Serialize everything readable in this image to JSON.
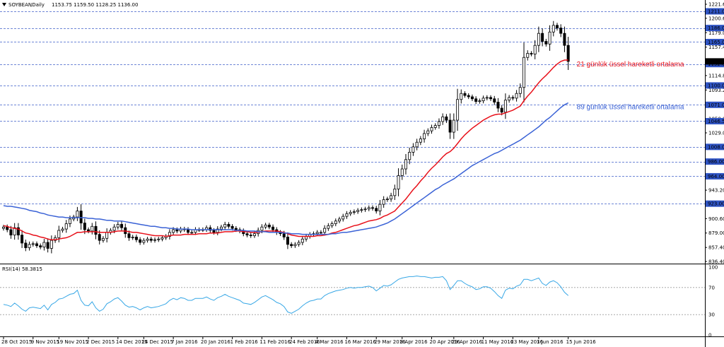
{
  "header": {
    "symbol": "SOYBEAN",
    "timeframe": ",Daily",
    "ohlc": "1153.75 1159.50 1128.25 1136.00",
    "indicator_label": "RSI(14) 58.3815"
  },
  "colors": {
    "candle": "#000000",
    "ema21": "#e8101a",
    "ema89": "#3a62d6",
    "rsi": "#37a7e6",
    "grid": "#3f5fc9",
    "highlight_bg": "#2f54c4",
    "price_marker_bg": "#000000"
  },
  "icons": {
    "collapse": "triangle-down-icon"
  },
  "chart_data": [
    {
      "type": "candlestick",
      "title": "SOYBEAN ,Daily",
      "grid": true,
      "ylim": [
        836.4,
        1221.6
      ],
      "y_ticks": [
        "1221.60",
        "1200.60",
        "1179.00",
        "1157.40",
        "1136.00",
        "1114.80",
        "1093.20",
        "1071.60",
        "1050.00",
        "1029.00",
        "1008.00",
        "986.00",
        "964.00",
        "943.20",
        "922.00",
        "900.60",
        "879.00",
        "857.40",
        "836.40"
      ],
      "horizontal_levels": [
        {
          "label": "1211.00",
          "value": 1211
        },
        {
          "label": "1186.00",
          "value": 1186
        },
        {
          "label": "1165.00",
          "value": 1165
        },
        {
          "label": "1132.00",
          "value": 1132
        },
        {
          "label": "1100.00",
          "value": 1100
        },
        {
          "label": "1071.00",
          "value": 1071
        },
        {
          "label": "1046.50",
          "value": 1046.5
        },
        {
          "label": "1008.00",
          "value": 1008
        },
        {
          "label": "986.00",
          "value": 986
        },
        {
          "label": "964.00",
          "value": 964
        },
        {
          "label": "923.00",
          "value": 923
        }
      ],
      "current_price": {
        "label": "1136.00",
        "value": 1136
      },
      "x_ticks": [
        "28 Oct 2015",
        "9 Nov 2015",
        "19 Nov 2015",
        "2 Dec 2015",
        "14 Dec 2015",
        "24 Dec 2015",
        "7 Jan 2016",
        "20 Jan 2016",
        "1 Feb 2016",
        "11 Feb 2016",
        "24 Feb 2016",
        "4 Mar 2016",
        "16 Mar 2016",
        "29 Mar 2016",
        "8 Apr 2016",
        "20 Apr 2016",
        "29 Apr 2016",
        "11 May 2016",
        "23 May 2016",
        "3 Jun 2016",
        "15 Jun 2016"
      ],
      "x_tick_bar_index": [
        0,
        8,
        15,
        23,
        31,
        38,
        46,
        54,
        62,
        70,
        78,
        85,
        93,
        101,
        108,
        116,
        122,
        130,
        138,
        145,
        153
      ],
      "close": [
        888,
        884,
        876,
        887,
        876,
        864,
        857,
        862,
        863,
        860,
        858,
        865,
        856,
        868,
        872,
        883,
        885,
        893,
        900,
        903,
        912,
        894,
        884,
        882,
        889,
        877,
        868,
        871,
        880,
        883,
        888,
        892,
        887,
        878,
        872,
        873,
        869,
        865,
        868,
        870,
        868,
        869,
        870,
        872,
        874,
        880,
        884,
        882,
        885,
        884,
        880,
        880,
        884,
        884,
        884,
        887,
        883,
        880,
        885,
        888,
        892,
        889,
        886,
        884,
        882,
        878,
        876,
        875,
        878,
        883,
        888,
        891,
        888,
        884,
        880,
        878,
        873,
        862,
        860,
        862,
        865,
        870,
        874,
        877,
        878,
        880,
        880,
        886,
        890,
        893,
        897,
        900,
        904,
        908,
        910,
        911,
        913,
        914,
        915,
        917,
        916,
        912,
        922,
        929,
        930,
        935,
        945,
        965,
        975,
        989,
        1000,
        1008,
        1015,
        1020,
        1028,
        1032,
        1037,
        1040,
        1046,
        1053,
        1048,
        1030,
        1048,
        1079,
        1088,
        1085,
        1083,
        1080,
        1076,
        1077,
        1081,
        1082,
        1080,
        1075,
        1066,
        1060,
        1078,
        1082,
        1081,
        1088,
        1097,
        1142,
        1148,
        1147,
        1160,
        1178,
        1166,
        1162,
        1180,
        1190,
        1186,
        1178,
        1160,
        1136
      ],
      "series": [
        {
          "name": "21 günlük üssel hareketli ortalama",
          "values": [
            890,
            889,
            887,
            886,
            885,
            882,
            879,
            878,
            876,
            875,
            873,
            872,
            870,
            869,
            869,
            870,
            871,
            872,
            874,
            877,
            880,
            880,
            881,
            881,
            881,
            881,
            880,
            880,
            880,
            880,
            881,
            882,
            882,
            882,
            881,
            880,
            880,
            879,
            878,
            877,
            876,
            875,
            875,
            875,
            874,
            875,
            876,
            876,
            876,
            877,
            877,
            877,
            877,
            878,
            878,
            878,
            879,
            879,
            879,
            880,
            881,
            881,
            881,
            882,
            882,
            881,
            881,
            880,
            880,
            880,
            881,
            882,
            882,
            882,
            882,
            881,
            880,
            878,
            876,
            875,
            874,
            874,
            874,
            874,
            874,
            875,
            875,
            876,
            877,
            879,
            880,
            882,
            884,
            886,
            888,
            890,
            891,
            893,
            895,
            897,
            898,
            899,
            901,
            904,
            906,
            909,
            912,
            918,
            924,
            930,
            937,
            944,
            950,
            957,
            963,
            970,
            976,
            981,
            987,
            993,
            998,
            1001,
            1006,
            1013,
            1020,
            1026,
            1031,
            1036,
            1040,
            1044,
            1048,
            1051,
            1054,
            1056,
            1057,
            1057,
            1059,
            1061,
            1063,
            1066,
            1069,
            1077,
            1084,
            1090,
            1097,
            1104,
            1110,
            1115,
            1121,
            1127,
            1132,
            1136,
            1138,
            1138
          ]
        },
        {
          "name": "89 günlük üssel hareketli ortalama",
          "values": [
            920,
            919,
            919,
            918,
            917,
            916,
            915,
            913,
            912,
            911,
            909,
            908,
            906,
            905,
            904,
            903,
            903,
            902,
            902,
            902,
            902,
            902,
            902,
            901,
            901,
            900,
            900,
            899,
            898,
            898,
            897,
            897,
            897,
            896,
            895,
            894,
            893,
            892,
            891,
            890,
            889,
            889,
            888,
            887,
            887,
            886,
            886,
            885,
            885,
            885,
            885,
            884,
            884,
            884,
            884,
            884,
            884,
            884,
            884,
            884,
            884,
            884,
            884,
            883,
            883,
            883,
            882,
            882,
            882,
            881,
            881,
            881,
            880,
            880,
            880,
            880,
            879,
            879,
            878,
            878,
            878,
            877,
            877,
            877,
            877,
            877,
            877,
            877,
            877,
            878,
            878,
            879,
            880,
            880,
            881,
            882,
            883,
            884,
            885,
            886,
            887,
            888,
            890,
            892,
            894,
            897,
            900,
            904,
            908,
            912,
            916,
            920,
            924,
            928,
            932,
            936,
            940,
            944,
            947,
            951,
            954,
            957,
            960,
            964,
            968,
            972,
            976,
            980,
            983,
            986,
            989,
            992,
            995,
            998,
            1000,
            1003,
            1006,
            1009,
            1012,
            1015,
            1018,
            1022,
            1026,
            1030,
            1034,
            1038,
            1043,
            1048,
            1052,
            1057,
            1062,
            1067,
            1071,
            1074
          ]
        }
      ],
      "annotations": [
        {
          "text": "21 günlük üssel hareketli ortalama",
          "series": 0
        },
        {
          "text": "89 günlük üssel hareketli ortalama",
          "series": 1
        }
      ]
    },
    {
      "type": "line",
      "title": "RSI(14) 58.3815",
      "ylim": [
        0,
        100
      ],
      "y_ticks": [
        "100",
        "70",
        "30",
        "0"
      ],
      "levels": [
        70,
        30
      ],
      "series": [
        {
          "name": "RSI(14)",
          "values": [
            45,
            44,
            42,
            47,
            43,
            38,
            35,
            40,
            41,
            40,
            39,
            44,
            37,
            45,
            48,
            53,
            54,
            57,
            60,
            61,
            66,
            51,
            44,
            43,
            49,
            40,
            35,
            38,
            46,
            49,
            53,
            55,
            50,
            44,
            41,
            42,
            40,
            37,
            40,
            42,
            40,
            41,
            42,
            44,
            46,
            51,
            54,
            52,
            55,
            54,
            51,
            51,
            54,
            54,
            54,
            56,
            53,
            51,
            55,
            57,
            60,
            57,
            55,
            53,
            51,
            47,
            46,
            45,
            48,
            52,
            56,
            58,
            55,
            52,
            48,
            46,
            42,
            34,
            32,
            35,
            38,
            43,
            47,
            50,
            51,
            53,
            53,
            58,
            61,
            63,
            65,
            66,
            67,
            69,
            70,
            69,
            70,
            70,
            71,
            72,
            70,
            65,
            69,
            73,
            72,
            74,
            78,
            82,
            84,
            85,
            86,
            86,
            87,
            86,
            86,
            85,
            84,
            85,
            85,
            86,
            80,
            67,
            73,
            80,
            80,
            76,
            73,
            71,
            67,
            68,
            71,
            71,
            69,
            64,
            58,
            54,
            66,
            69,
            68,
            72,
            74,
            82,
            82,
            80,
            82,
            84,
            76,
            73,
            78,
            80,
            77,
            71,
            63,
            58
          ]
        }
      ]
    }
  ]
}
